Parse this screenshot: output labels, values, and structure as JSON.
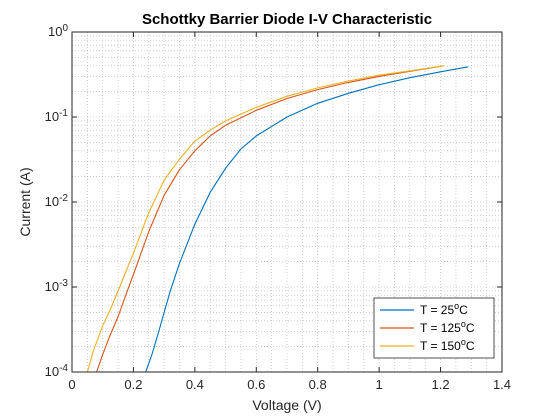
{
  "chart_data": {
    "type": "line",
    "title": "Schottky Barrier Diode I-V Characteristic",
    "xlabel": "Voltage (V)",
    "ylabel": "Current (A)",
    "xlim": [
      0,
      1.4
    ],
    "ylim": [
      0.0001,
      1
    ],
    "yscale": "log",
    "grid": "on (major and minor, dotted)",
    "legend_placement": "bottom-right",
    "x_ticks": [
      "0",
      "0.2",
      "0.4",
      "0.6",
      "0.8",
      "1",
      "1.2",
      "1.4"
    ],
    "y_ticks": [
      {
        "base": "10",
        "exp": "-4"
      },
      {
        "base": "10",
        "exp": "-3"
      },
      {
        "base": "10",
        "exp": "-2"
      },
      {
        "base": "10",
        "exp": "-1"
      },
      {
        "base": "10",
        "exp": "0"
      }
    ],
    "series": [
      {
        "name_prefix": "T = 25",
        "name_sup": "o",
        "name_suffix": "C",
        "color": "#0072bd",
        "x": [
          0.24,
          0.26,
          0.28,
          0.3,
          0.32,
          0.35,
          0.4,
          0.45,
          0.5,
          0.55,
          0.6,
          0.7,
          0.8,
          0.9,
          1.0,
          1.1,
          1.2,
          1.29
        ],
        "y": [
          0.0001,
          0.00016,
          0.00028,
          0.0005,
          0.0009,
          0.0019,
          0.0055,
          0.013,
          0.025,
          0.042,
          0.06,
          0.1,
          0.145,
          0.19,
          0.24,
          0.29,
          0.34,
          0.39
        ]
      },
      {
        "name_prefix": "T = 125",
        "name_sup": "o",
        "name_suffix": "C",
        "color": "#d95319",
        "x": [
          0.08,
          0.1,
          0.12,
          0.15,
          0.18,
          0.2,
          0.25,
          0.3,
          0.35,
          0.4,
          0.45,
          0.5,
          0.6,
          0.7,
          0.8,
          0.9,
          1.0,
          1.1,
          1.21
        ],
        "y": [
          0.0001,
          0.00016,
          0.00025,
          0.00045,
          0.0009,
          0.0014,
          0.0045,
          0.012,
          0.024,
          0.04,
          0.06,
          0.08,
          0.12,
          0.165,
          0.21,
          0.255,
          0.3,
          0.345,
          0.4
        ]
      },
      {
        "name_prefix": "T = 150",
        "name_sup": "o",
        "name_suffix": "C",
        "color": "#edb120",
        "x": [
          0.05,
          0.07,
          0.1,
          0.13,
          0.16,
          0.2,
          0.25,
          0.3,
          0.35,
          0.4,
          0.45,
          0.5,
          0.6,
          0.7,
          0.8,
          0.9,
          1.0,
          1.1,
          1.21
        ],
        "y": [
          0.0001,
          0.00018,
          0.00035,
          0.0006,
          0.0011,
          0.0025,
          0.0075,
          0.018,
          0.032,
          0.052,
          0.07,
          0.09,
          0.13,
          0.175,
          0.22,
          0.265,
          0.31,
          0.35,
          0.4
        ]
      }
    ]
  }
}
